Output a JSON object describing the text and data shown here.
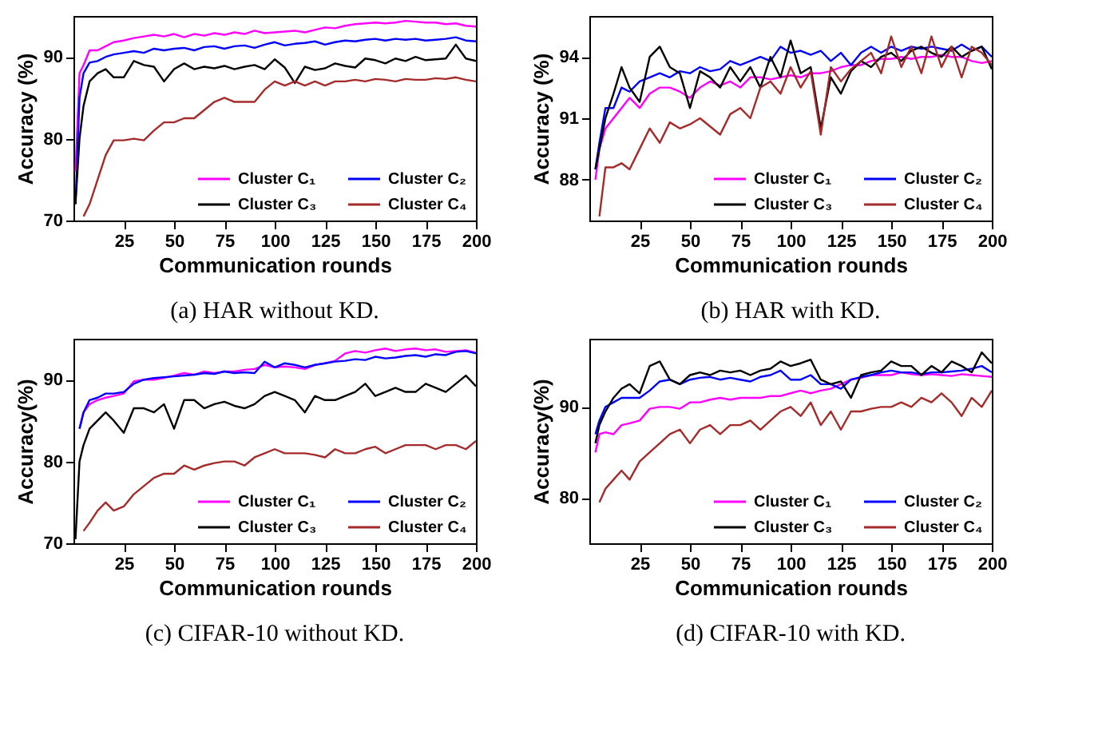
{
  "chart_data": [
    {
      "type": "line",
      "title": "(a) HAR without KD.",
      "xlabel": "Communication rounds",
      "ylabel": "Accuracy (%)",
      "legend": "bottom",
      "x": [
        1,
        3,
        5,
        8,
        12,
        16,
        20,
        25,
        30,
        35,
        40,
        45,
        50,
        55,
        60,
        65,
        70,
        75,
        80,
        85,
        90,
        95,
        100,
        105,
        110,
        115,
        120,
        125,
        130,
        135,
        140,
        145,
        150,
        155,
        160,
        165,
        170,
        175,
        180,
        185,
        190,
        195,
        200
      ],
      "xlim": [
        0,
        200
      ],
      "xticks": [
        25,
        50,
        75,
        100,
        125,
        150,
        175,
        200
      ],
      "ylim": [
        70,
        95
      ],
      "yticks": [
        70,
        80,
        90
      ],
      "series": [
        {
          "name": "Cluster C₁",
          "color": "#ff00ff",
          "values": [
            76,
            88,
            89,
            90.8,
            90.8,
            91.3,
            91.8,
            92,
            92.3,
            92.5,
            92.7,
            92.5,
            92.8,
            92.4,
            92.8,
            92.6,
            92.9,
            92.7,
            93,
            92.8,
            93.2,
            92.9,
            93,
            93.1,
            93.2,
            93,
            93.3,
            93.6,
            93.5,
            93.8,
            94,
            94.1,
            94.2,
            94.1,
            94.2,
            94.4,
            94.3,
            94.2,
            94.2,
            94,
            94.1,
            93.8,
            93.7
          ]
        },
        {
          "name": "Cluster C₂",
          "color": "#0000ff",
          "values": [
            72,
            85,
            88,
            89.3,
            89.5,
            90,
            90.3,
            90.5,
            90.7,
            90.5,
            91,
            90.8,
            91,
            91.1,
            90.8,
            91.2,
            91.3,
            91,
            91.3,
            91.4,
            91.1,
            91.5,
            91.8,
            91.4,
            91.6,
            91.7,
            91.9,
            91.5,
            91.8,
            92,
            91.9,
            92.1,
            92.2,
            92,
            92.2,
            92.1,
            92.2,
            92,
            92.1,
            92.2,
            92.4,
            92,
            91.9
          ]
        },
        {
          "name": "Cluster C₃",
          "color": "#000000",
          "values": [
            72,
            80,
            84,
            87,
            88,
            88.5,
            87.5,
            87.5,
            89.5,
            89,
            88.8,
            87,
            88.5,
            89.2,
            88.5,
            88.8,
            88.6,
            88.9,
            88.5,
            88.8,
            89,
            88.5,
            89.7,
            88.7,
            86.8,
            88.8,
            88.4,
            88.6,
            89.2,
            88.9,
            88.7,
            89.8,
            89.6,
            89.2,
            89.8,
            89.5,
            90,
            89.6,
            89.7,
            89.8,
            91.5,
            89.8,
            89.5
          ]
        },
        {
          "name": "Cluster C₄",
          "color": "#a52a2a",
          "values": [
            null,
            null,
            70.5,
            72,
            75,
            78,
            79.8,
            79.8,
            80,
            79.8,
            81,
            82,
            82,
            82.5,
            82.5,
            83.5,
            84.5,
            85,
            84.5,
            84.5,
            84.5,
            86,
            87,
            86.5,
            87,
            86.5,
            87,
            86.5,
            87,
            87,
            87.2,
            87,
            87.3,
            87.2,
            87,
            87.3,
            87.2,
            87.2,
            87.4,
            87.3,
            87.5,
            87.2,
            87
          ]
        }
      ]
    },
    {
      "type": "line",
      "title": "(b) HAR with KD.",
      "xlabel": "Communication rounds",
      "ylabel": "Accuracy (%)",
      "legend": "bottom",
      "x": [
        3,
        5,
        8,
        12,
        16,
        20,
        25,
        30,
        35,
        40,
        45,
        50,
        55,
        60,
        65,
        70,
        75,
        80,
        85,
        90,
        95,
        100,
        105,
        110,
        115,
        120,
        125,
        130,
        135,
        140,
        145,
        150,
        155,
        160,
        165,
        170,
        175,
        180,
        185,
        190,
        195,
        200
      ],
      "xlim": [
        0,
        200
      ],
      "xticks": [
        25,
        50,
        75,
        100,
        125,
        150,
        175,
        200
      ],
      "ylim": [
        86,
        96
      ],
      "yticks": [
        88,
        91,
        94
      ],
      "series": [
        {
          "name": "Cluster C₁",
          "color": "#ff00ff",
          "values": [
            88,
            89.5,
            90.5,
            91,
            91.5,
            92,
            91.5,
            92.2,
            92.5,
            92.5,
            92.3,
            92,
            92.5,
            92.8,
            92.6,
            92.8,
            92.5,
            93,
            93,
            92.9,
            93,
            93.1,
            93,
            93.2,
            93.2,
            93.3,
            93.5,
            93.6,
            93.6,
            93.8,
            93.9,
            93.9,
            94,
            93.9,
            94,
            94,
            94.1,
            94,
            94,
            93.8,
            93.7,
            93.8
          ]
        },
        {
          "name": "Cluster C₂",
          "color": "#0000ff",
          "values": [
            88.5,
            89.8,
            91.5,
            91.5,
            92.5,
            92.3,
            92.8,
            93,
            93.2,
            93,
            93.3,
            93.2,
            93.5,
            93.3,
            93.4,
            93.8,
            93.6,
            93.8,
            94,
            93.8,
            94.5,
            94.2,
            94.3,
            94.1,
            94.3,
            93.8,
            94.2,
            93.6,
            94.2,
            94.5,
            94.2,
            94.5,
            94.3,
            94.5,
            94.4,
            94.5,
            94.4,
            94.3,
            94.6,
            94.3,
            94.5,
            94
          ]
        },
        {
          "name": "Cluster C₃",
          "color": "#000000",
          "values": [
            88.5,
            89.5,
            91,
            92.2,
            93.5,
            92.5,
            91.8,
            94,
            94.5,
            93.5,
            93.2,
            91.5,
            93.3,
            93,
            92.5,
            93.5,
            92.8,
            93.5,
            92.5,
            94,
            93,
            94.8,
            93.2,
            93.5,
            90.5,
            93,
            92.2,
            93.3,
            93.8,
            93.5,
            94,
            94.2,
            93.8,
            94.3,
            94.5,
            94.2,
            94,
            94.5,
            94,
            94.3,
            94.5,
            93.4
          ]
        },
        {
          "name": "Cluster C₄",
          "color": "#a52a2a",
          "values": [
            null,
            86.2,
            88.6,
            88.6,
            88.8,
            88.5,
            89.5,
            90.5,
            89.8,
            90.8,
            90.5,
            90.7,
            91,
            90.6,
            90.2,
            91.2,
            91.5,
            91,
            92.5,
            92.8,
            92.2,
            93.5,
            92.5,
            93.3,
            90.2,
            93.5,
            92.8,
            93.4,
            93.8,
            94.2,
            93.2,
            95,
            93.5,
            94.5,
            93.2,
            95,
            93.5,
            94.5,
            93,
            94.5,
            94.2,
            93.6
          ]
        }
      ]
    },
    {
      "type": "line",
      "title": "(c) CIFAR-10 without KD.",
      "xlabel": "Communication rounds",
      "ylabel": "Accuracy(%)",
      "legend": "bottom",
      "x": [
        1,
        3,
        5,
        8,
        12,
        16,
        20,
        25,
        30,
        35,
        40,
        45,
        50,
        55,
        60,
        65,
        70,
        75,
        80,
        85,
        90,
        95,
        100,
        105,
        110,
        115,
        120,
        125,
        130,
        135,
        140,
        145,
        150,
        155,
        160,
        165,
        170,
        175,
        180,
        185,
        190,
        195,
        200
      ],
      "xlim": [
        0,
        200
      ],
      "xticks": [
        25,
        50,
        75,
        100,
        125,
        150,
        175,
        200
      ],
      "ylim": [
        70,
        95
      ],
      "yticks": [
        70,
        80,
        90
      ],
      "series": [
        {
          "name": "Cluster C₁",
          "color": "#ff00ff",
          "values": [
            null,
            84,
            86,
            87,
            87.5,
            87.8,
            88,
            88.3,
            89.8,
            90,
            90,
            90.2,
            90.5,
            90.8,
            90.6,
            91,
            90.8,
            91,
            91,
            91.2,
            91.3,
            91.8,
            91.5,
            91.6,
            91.5,
            91.3,
            91.8,
            92,
            92.3,
            93.2,
            93.5,
            93.3,
            93.6,
            93.8,
            93.5,
            93.7,
            93.8,
            93.6,
            93.7,
            93.4,
            93.5,
            93.6,
            93.3
          ]
        },
        {
          "name": "Cluster C₂",
          "color": "#0000ff",
          "values": [
            null,
            84,
            86,
            87.5,
            87.8,
            88.3,
            88.3,
            88.5,
            89.5,
            90,
            90.2,
            90.3,
            90.4,
            90.5,
            90.6,
            90.8,
            90.7,
            91,
            90.8,
            90.9,
            90.8,
            92.2,
            91.5,
            92,
            91.8,
            91.5,
            91.8,
            92,
            92.2,
            92.3,
            92.5,
            92.4,
            92.8,
            92.6,
            92.7,
            92.9,
            93,
            92.8,
            93.1,
            93,
            93.4,
            93.5,
            93.2
          ]
        },
        {
          "name": "Cluster C₃",
          "color": "#000000",
          "values": [
            70.5,
            80,
            82,
            84,
            85,
            86,
            85,
            83.5,
            86.5,
            86.5,
            86,
            87,
            84,
            87.5,
            87.5,
            86.5,
            87,
            87.3,
            86.8,
            86.5,
            87,
            88,
            88.5,
            88,
            87.5,
            86,
            88,
            87.5,
            87.5,
            88,
            88.5,
            89.5,
            88,
            88.5,
            89,
            88.5,
            88.5,
            89.5,
            89,
            88.5,
            89.5,
            90.5,
            89.2
          ]
        },
        {
          "name": "Cluster C₄",
          "color": "#a52a2a",
          "values": [
            null,
            null,
            71.5,
            72.5,
            74,
            75,
            74,
            74.5,
            76,
            77,
            78,
            78.5,
            78.5,
            79.5,
            79,
            79.5,
            79.8,
            80,
            80,
            79.5,
            80.5,
            81,
            81.5,
            81,
            81,
            81,
            80.8,
            80.5,
            81.5,
            81,
            81,
            81.5,
            81.8,
            81,
            81.5,
            82,
            82,
            82,
            81.5,
            82,
            82,
            81.5,
            82.5
          ]
        }
      ]
    },
    {
      "type": "line",
      "title": "(d) CIFAR-10 with KD.",
      "xlabel": "Communication rounds",
      "ylabel": "Accuracy(%)",
      "legend": "bottom",
      "x": [
        3,
        5,
        8,
        12,
        16,
        20,
        25,
        30,
        35,
        40,
        45,
        50,
        55,
        60,
        65,
        70,
        75,
        80,
        85,
        90,
        95,
        100,
        105,
        110,
        115,
        120,
        125,
        130,
        135,
        140,
        145,
        150,
        155,
        160,
        165,
        170,
        175,
        180,
        185,
        190,
        195,
        200
      ],
      "xlim": [
        0,
        200
      ],
      "xticks": [
        25,
        50,
        75,
        100,
        125,
        150,
        175,
        200
      ],
      "ylim": [
        75,
        97.5
      ],
      "yticks": [
        80,
        90
      ],
      "series": [
        {
          "name": "Cluster C₁",
          "color": "#ff00ff",
          "values": [
            85,
            87,
            87.2,
            87,
            88,
            88.2,
            88.5,
            89.8,
            90,
            90,
            89.8,
            90.5,
            90.5,
            90.8,
            91,
            90.8,
            91,
            91,
            91,
            91.2,
            91.2,
            91.5,
            91.8,
            91.5,
            91.8,
            92,
            92.5,
            93,
            93.2,
            93.5,
            93.5,
            93.5,
            93.8,
            93.6,
            93.5,
            93.6,
            93.5,
            93.4,
            93.6,
            93.5,
            93.4,
            93.3
          ]
        },
        {
          "name": "Cluster C₂",
          "color": "#0000ff",
          "values": [
            87,
            88.5,
            90,
            90.5,
            91,
            91,
            91,
            91.8,
            92.8,
            93,
            92.5,
            93,
            93.2,
            93.3,
            93,
            93.2,
            93,
            92.8,
            93.3,
            93.5,
            94,
            93,
            93,
            93.5,
            92.5,
            92.5,
            92,
            93,
            93.3,
            93.5,
            93.8,
            94,
            93.8,
            93.8,
            93.6,
            93.8,
            93.8,
            93.9,
            94,
            94.2,
            94.5,
            93.8
          ]
        },
        {
          "name": "Cluster C₃",
          "color": "#000000",
          "values": [
            86,
            88,
            89.5,
            91,
            92,
            92.5,
            91.5,
            94.5,
            95,
            93,
            92.5,
            93.5,
            93.8,
            93.5,
            94,
            93.8,
            94,
            93.5,
            94,
            94.2,
            95,
            94.5,
            94.8,
            95.2,
            93,
            92.5,
            92.8,
            91,
            93.5,
            93.8,
            94,
            95,
            94.5,
            94.5,
            93.5,
            94.5,
            93.8,
            95,
            94.5,
            93.8,
            96,
            94.8
          ]
        },
        {
          "name": "Cluster C₄",
          "color": "#a52a2a",
          "values": [
            null,
            79.5,
            81,
            82,
            83,
            82,
            84,
            85,
            86,
            87,
            87.5,
            86,
            87.5,
            88,
            87,
            88,
            88,
            88.5,
            87.5,
            88.5,
            89.5,
            90,
            89,
            90.5,
            88,
            89.5,
            87.5,
            89.5,
            89.5,
            89.8,
            90,
            90,
            90.5,
            90,
            91,
            90.5,
            91.5,
            90.5,
            89,
            91,
            90,
            91.8
          ]
        }
      ]
    }
  ]
}
